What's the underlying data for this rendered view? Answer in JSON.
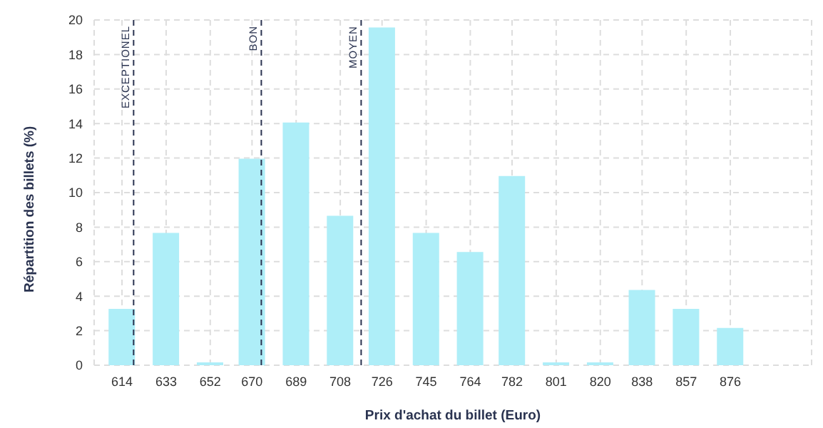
{
  "chart_data": {
    "type": "bar",
    "xlabel": "Prix d'achat du billet (Euro)",
    "ylabel": "Répartition des billets (%)",
    "x": [
      614,
      633,
      652,
      670,
      689,
      708,
      726,
      745,
      764,
      782,
      801,
      820,
      838,
      857,
      876
    ],
    "values": [
      3.2,
      7.6,
      0.1,
      11.9,
      14.0,
      8.6,
      19.5,
      7.6,
      6.5,
      10.9,
      0.1,
      0.1,
      4.3,
      3.2,
      2.1
    ],
    "color": "#aeeef8",
    "xlim": [
      602,
      911
    ],
    "xticks": [
      614,
      633,
      652,
      670,
      689,
      708,
      726,
      745,
      764,
      782,
      801,
      820,
      838,
      857,
      876
    ],
    "ylim": [
      0,
      20
    ],
    "yticks": [
      0,
      2,
      4,
      6,
      8,
      10,
      12,
      14,
      16,
      18,
      20
    ],
    "grid": true,
    "legend": false,
    "ref_lines": [
      {
        "axis": "x",
        "value": 619,
        "label": "EXCEPTIONEL",
        "color": "#2a3350",
        "line_style": "dashed"
      },
      {
        "axis": "x",
        "value": 674,
        "label": "BON",
        "color": "#2a3350",
        "line_style": "dashed"
      },
      {
        "axis": "x",
        "value": 717,
        "label": "MOYEN",
        "color": "#2a3350",
        "line_style": "dashed"
      }
    ]
  }
}
